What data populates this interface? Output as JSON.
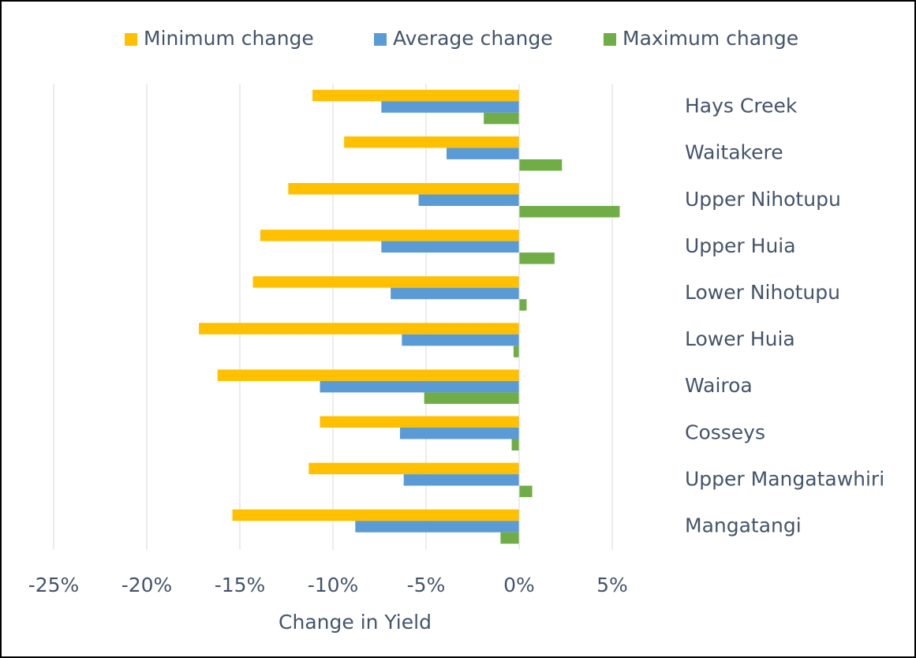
{
  "chart_data": {
    "type": "hbar",
    "categories": [
      "Hays Creek",
      "Waitakere",
      "Upper Nihotupu",
      "Upper Huia",
      "Lower Nihotupu",
      "Lower Huia",
      "Wairoa",
      "Cosseys",
      "Upper Mangatawhiri",
      "Mangatangi"
    ],
    "series": [
      {
        "name": "Minimum change",
        "color": "#ffc000",
        "values": [
          -11.1,
          -9.4,
          -12.4,
          -13.9,
          -14.3,
          -17.2,
          -16.2,
          -10.7,
          -11.3,
          -15.4
        ]
      },
      {
        "name": "Average change",
        "color": "#5b9bd5",
        "values": [
          -7.4,
          -3.9,
          -5.4,
          -7.4,
          -6.9,
          -6.3,
          -10.7,
          -6.4,
          -6.2,
          -8.8
        ]
      },
      {
        "name": "Maximum change",
        "color": "#70ad47",
        "values": [
          -1.9,
          2.3,
          5.4,
          1.9,
          0.4,
          -0.3,
          -5.1,
          -0.4,
          0.7,
          -1.0
        ]
      }
    ],
    "xlabel": "Change in Yield",
    "xlim": [
      -25,
      5
    ],
    "xticks": [
      {
        "value": -25,
        "label": "-25%"
      },
      {
        "value": -20,
        "label": "-20%"
      },
      {
        "value": -15,
        "label": "-15%"
      },
      {
        "value": -10,
        "label": "-10%"
      },
      {
        "value": -5,
        "label": "-5%"
      },
      {
        "value": 0,
        "label": "0%"
      },
      {
        "value": 5,
        "label": "5%"
      }
    ],
    "grid": true,
    "legend": "top"
  }
}
